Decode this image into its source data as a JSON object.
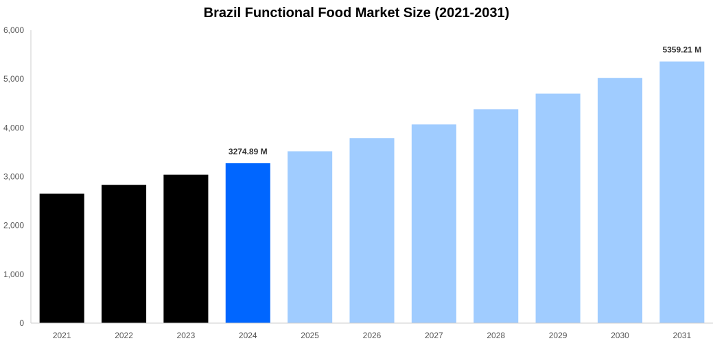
{
  "chart_data": {
    "type": "bar",
    "title": "Brazil Functional Food Market Size (2021-2031)",
    "xlabel": "",
    "ylabel": "",
    "categories": [
      "2021",
      "2022",
      "2023",
      "2024",
      "2025",
      "2026",
      "2027",
      "2028",
      "2029",
      "2030",
      "2031"
    ],
    "values": [
      2650,
      2830,
      3040,
      3274.89,
      3520,
      3790,
      4070,
      4380,
      4700,
      5020,
      5359.21
    ],
    "ylim": [
      0,
      6000
    ],
    "yticks": [
      "0",
      "1,000",
      "2,000",
      "3,000",
      "4,000",
      "5,000",
      "6,000"
    ],
    "ytick_values": [
      0,
      1000,
      2000,
      3000,
      4000,
      5000,
      6000
    ],
    "bar_colors": [
      "#000000",
      "#000000",
      "#000000",
      "#0066ff",
      "#a0ccff",
      "#a0ccff",
      "#a0ccff",
      "#a0ccff",
      "#a0ccff",
      "#a0ccff",
      "#a0ccff"
    ],
    "data_labels": [
      {
        "category": "2024",
        "text": "3274.89 M"
      },
      {
        "category": "2031",
        "text": "5359.21 M"
      }
    ],
    "grid": false,
    "legend": "none"
  }
}
